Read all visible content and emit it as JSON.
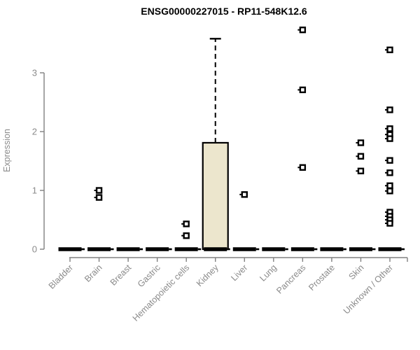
{
  "chart_data": {
    "type": "boxplot",
    "title": "ENSG00000227015 - RP11-548K12.6",
    "ylabel": "Expression",
    "xlabel": "",
    "yticks": [
      0,
      1,
      2,
      3
    ],
    "ylim": [
      0,
      3.8
    ],
    "grid": false,
    "legend": null,
    "categories": [
      "Bladder",
      "Brain",
      "Breast",
      "Gastric",
      "Hematopoietic cells",
      "Kidney",
      "Liver",
      "Lung",
      "Pancreas",
      "Prostate",
      "Skin",
      "Unknown / Other"
    ],
    "boxes": [
      {
        "category": "Bladder",
        "q1": 0,
        "median": 0,
        "q3": 0,
        "whisker_low": 0,
        "whisker_high": 0,
        "outliers": []
      },
      {
        "category": "Brain",
        "q1": 0,
        "median": 0,
        "q3": 0,
        "whisker_low": 0,
        "whisker_high": 0,
        "outliers": [
          1.0,
          0.88
        ]
      },
      {
        "category": "Breast",
        "q1": 0,
        "median": 0,
        "q3": 0,
        "whisker_low": 0,
        "whisker_high": 0,
        "outliers": []
      },
      {
        "category": "Gastric",
        "q1": 0,
        "median": 0,
        "q3": 0,
        "whisker_low": 0,
        "whisker_high": 0,
        "outliers": []
      },
      {
        "category": "Hematopoietic cells",
        "q1": 0,
        "median": 0,
        "q3": 0,
        "whisker_low": 0,
        "whisker_high": 0,
        "outliers": [
          0.43,
          0.23
        ]
      },
      {
        "category": "Kidney",
        "q1": 0,
        "median": 0,
        "q3": 1.81,
        "whisker_low": 0,
        "whisker_high": 3.58,
        "outliers": []
      },
      {
        "category": "Liver",
        "q1": 0,
        "median": 0,
        "q3": 0,
        "whisker_low": 0,
        "whisker_high": 0,
        "outliers": [
          0.93
        ]
      },
      {
        "category": "Lung",
        "q1": 0,
        "median": 0,
        "q3": 0,
        "whisker_low": 0,
        "whisker_high": 0,
        "outliers": []
      },
      {
        "category": "Pancreas",
        "q1": 0,
        "median": 0,
        "q3": 0,
        "whisker_low": 0,
        "whisker_high": 0,
        "outliers": [
          3.73,
          2.71,
          1.39
        ]
      },
      {
        "category": "Prostate",
        "q1": 0,
        "median": 0,
        "q3": 0,
        "whisker_low": 0,
        "whisker_high": 0,
        "outliers": []
      },
      {
        "category": "Skin",
        "q1": 0,
        "median": 0,
        "q3": 0,
        "whisker_low": 0,
        "whisker_high": 0,
        "outliers": [
          1.81,
          1.58,
          1.33
        ]
      },
      {
        "category": "Unknown / Other",
        "q1": 0,
        "median": 0,
        "q3": 0,
        "whisker_low": 0,
        "whisker_high": 0,
        "outliers": [
          3.39,
          2.37,
          2.05,
          1.95,
          1.88,
          1.51,
          1.3,
          1.08,
          0.99,
          0.63,
          0.56,
          0.5,
          0.44
        ]
      }
    ],
    "colors": {
      "box_fill": "#ECE6CD",
      "box_border": "#000000",
      "median": "#000000",
      "whisker": "#000000",
      "outlier": "#000000",
      "axis": "#808080",
      "tick_label": "#8b8b8b",
      "title": "#000000",
      "background": "#ffffff"
    }
  }
}
